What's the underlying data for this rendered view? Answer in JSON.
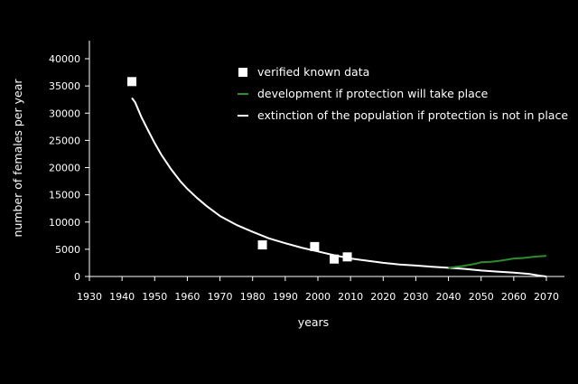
{
  "chart_data": {
    "type": "line",
    "title": "",
    "xlabel": "years",
    "ylabel": "number of females per year",
    "xlim": [
      1930,
      2070
    ],
    "ylim": [
      0,
      40000
    ],
    "x_ticks": [
      1930,
      1940,
      1950,
      1960,
      1970,
      1980,
      1990,
      2000,
      2010,
      2020,
      2030,
      2040,
      2050,
      2060,
      2070
    ],
    "y_ticks": [
      0,
      5000,
      10000,
      15000,
      20000,
      25000,
      30000,
      35000,
      40000
    ],
    "grid": false,
    "legend_position": "top-right",
    "colors": {
      "background": "#000000",
      "axis": "#ffffff",
      "verified": "#ffffff",
      "protection": "#2e8b2e",
      "extinction": "#ffffff"
    },
    "legend": [
      {
        "label": "verified known data",
        "marker": "square",
        "color": "#ffffff"
      },
      {
        "label": "development if protection will take place",
        "marker": "line",
        "color": "#2e8b2e"
      },
      {
        "label": "extinction of the population if protection is not in place",
        "marker": "line",
        "color": "#ffffff"
      }
    ],
    "series": [
      {
        "name": "verified known data",
        "kind": "scatter",
        "color": "#ffffff",
        "points": [
          {
            "x": 1943,
            "y": 35800
          },
          {
            "x": 1983,
            "y": 5800
          },
          {
            "x": 1999,
            "y": 5500
          },
          {
            "x": 2005,
            "y": 3200
          },
          {
            "x": 2009,
            "y": 3600
          }
        ]
      },
      {
        "name": "extinction of the population if protection is not in place",
        "kind": "line",
        "color": "#ffffff",
        "points": [
          {
            "x": 1943,
            "y": 32800
          },
          {
            "x": 1944,
            "y": 32000
          },
          {
            "x": 1946,
            "y": 29200
          },
          {
            "x": 1948,
            "y": 26800
          },
          {
            "x": 1950,
            "y": 24500
          },
          {
            "x": 1952,
            "y": 22400
          },
          {
            "x": 1955,
            "y": 19700
          },
          {
            "x": 1958,
            "y": 17400
          },
          {
            "x": 1960,
            "y": 16100
          },
          {
            "x": 1963,
            "y": 14400
          },
          {
            "x": 1966,
            "y": 12900
          },
          {
            "x": 1970,
            "y": 11100
          },
          {
            "x": 1975,
            "y": 9500
          },
          {
            "x": 1980,
            "y": 8200
          },
          {
            "x": 1985,
            "y": 7000
          },
          {
            "x": 1990,
            "y": 6100
          },
          {
            "x": 1995,
            "y": 5300
          },
          {
            "x": 2000,
            "y": 4600
          },
          {
            "x": 2005,
            "y": 3900
          },
          {
            "x": 2010,
            "y": 3300
          },
          {
            "x": 2015,
            "y": 2900
          },
          {
            "x": 2020,
            "y": 2500
          },
          {
            "x": 2025,
            "y": 2200
          },
          {
            "x": 2030,
            "y": 2000
          },
          {
            "x": 2035,
            "y": 1800
          },
          {
            "x": 2040,
            "y": 1600
          },
          {
            "x": 2045,
            "y": 1400
          },
          {
            "x": 2050,
            "y": 1100
          },
          {
            "x": 2055,
            "y": 900
          },
          {
            "x": 2060,
            "y": 700
          },
          {
            "x": 2065,
            "y": 450
          },
          {
            "x": 2068,
            "y": 150
          },
          {
            "x": 2070,
            "y": 0
          }
        ]
      },
      {
        "name": "development if protection will take place",
        "kind": "line",
        "color": "#2e8b2e",
        "points": [
          {
            "x": 2040,
            "y": 1600
          },
          {
            "x": 2044,
            "y": 1900
          },
          {
            "x": 2048,
            "y": 2300
          },
          {
            "x": 2050,
            "y": 2600
          },
          {
            "x": 2053,
            "y": 2700
          },
          {
            "x": 2056,
            "y": 2900
          },
          {
            "x": 2060,
            "y": 3300
          },
          {
            "x": 2063,
            "y": 3400
          },
          {
            "x": 2066,
            "y": 3600
          },
          {
            "x": 2070,
            "y": 3800
          }
        ]
      }
    ]
  }
}
